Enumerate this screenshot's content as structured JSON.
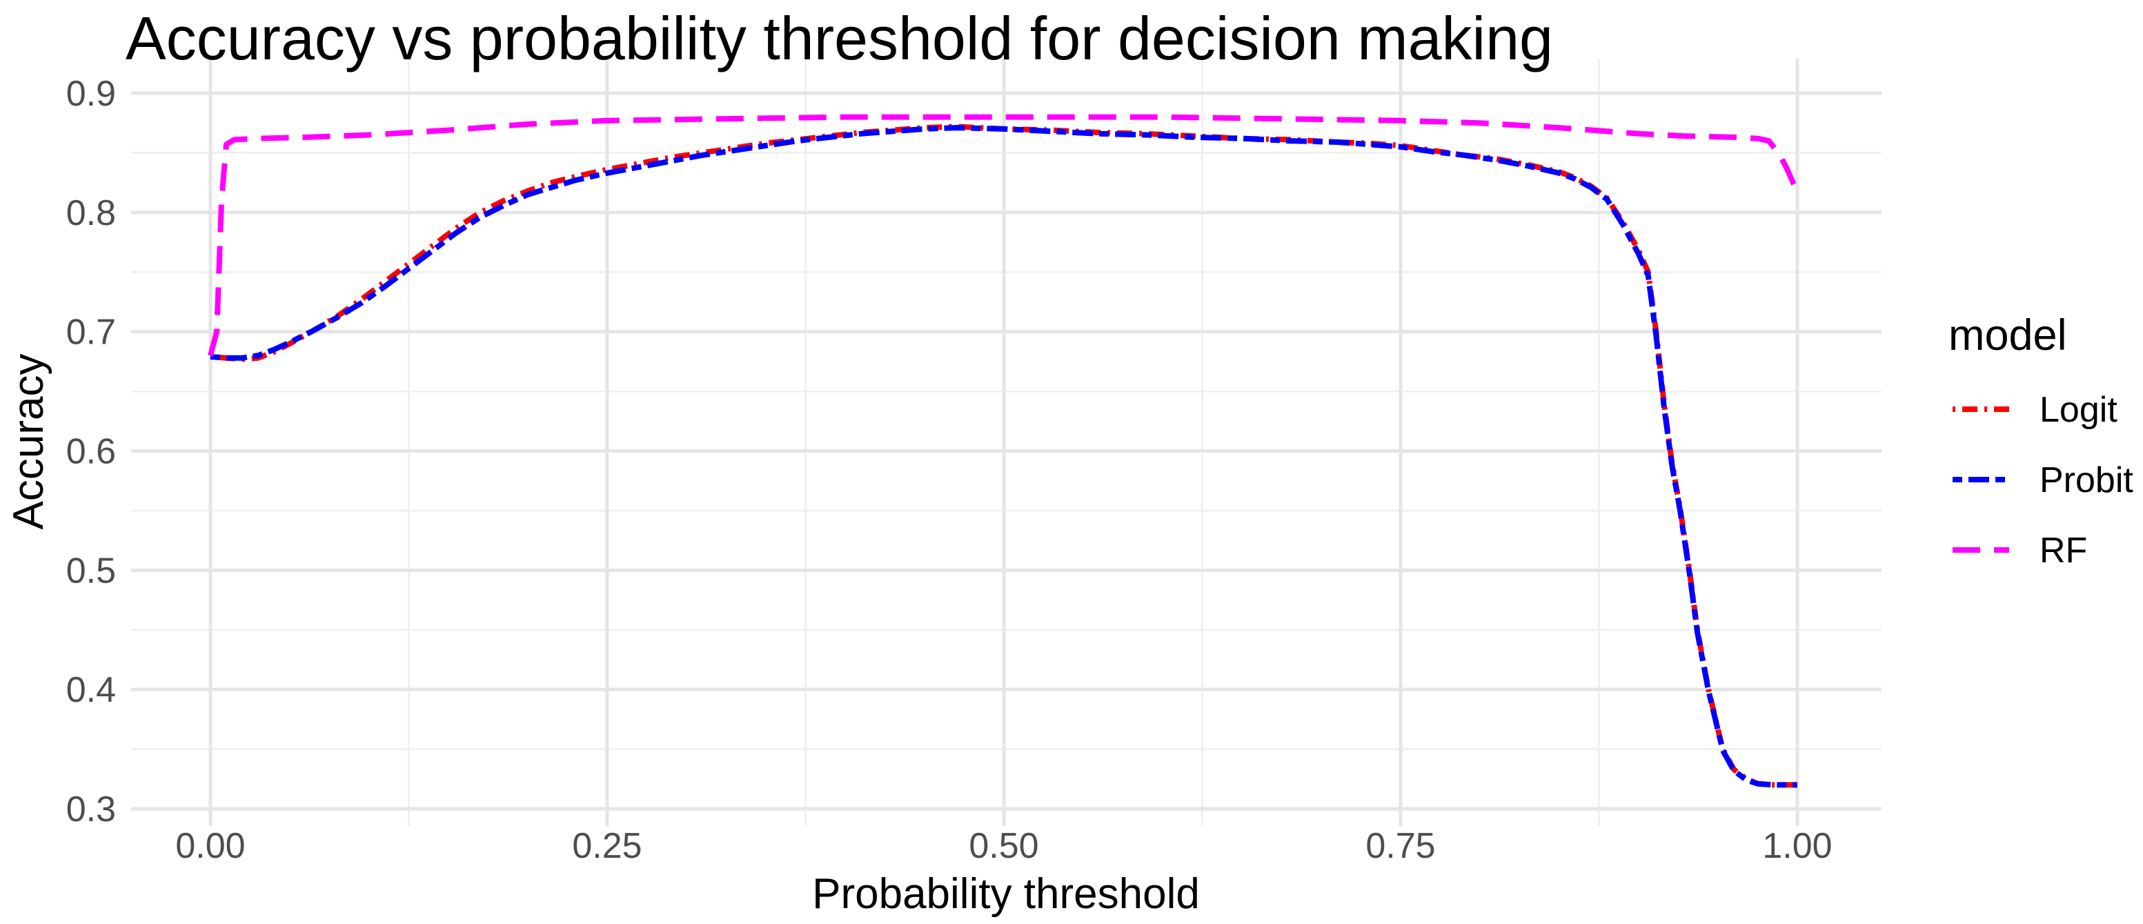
{
  "page": {
    "background": "#ffffff"
  },
  "chart_data": {
    "type": "line",
    "title": "Accuracy vs probability threshold for decision making",
    "xlabel": "Probability threshold",
    "ylabel": "Accuracy",
    "xlim": [
      0,
      1
    ],
    "ylim": [
      0.3,
      0.9
    ],
    "grid": true,
    "grid_major_color": "#e5e5e5",
    "grid_minor_color": "#f0f0f0",
    "tick_label_color": "#4d4d4d",
    "x_ticks": [
      {
        "v": 0.0,
        "label": "0.00"
      },
      {
        "v": 0.25,
        "label": "0.25"
      },
      {
        "v": 0.5,
        "label": "0.50"
      },
      {
        "v": 0.75,
        "label": "0.75"
      },
      {
        "v": 1.0,
        "label": "1.00"
      }
    ],
    "y_ticks": [
      {
        "v": 0.3,
        "label": "0.3"
      },
      {
        "v": 0.4,
        "label": "0.4"
      },
      {
        "v": 0.5,
        "label": "0.5"
      },
      {
        "v": 0.6,
        "label": "0.6"
      },
      {
        "v": 0.7,
        "label": "0.7"
      },
      {
        "v": 0.8,
        "label": "0.8"
      },
      {
        "v": 0.9,
        "label": "0.9"
      }
    ],
    "x_minor": [
      0.125,
      0.375,
      0.625,
      0.875
    ],
    "y_minor": [
      0.35,
      0.45,
      0.55,
      0.65,
      0.75,
      0.85
    ],
    "legend": {
      "title": "model",
      "position": "right"
    },
    "series": [
      {
        "name": "Logit",
        "color": "#ff0000",
        "dash": "4 10 22 10",
        "points": [
          [
            0,
            0.679
          ],
          [
            0.01,
            0.678
          ],
          [
            0.02,
            0.677
          ],
          [
            0.03,
            0.678
          ],
          [
            0.04,
            0.683
          ],
          [
            0.05,
            0.69
          ],
          [
            0.065,
            0.701
          ],
          [
            0.08,
            0.713
          ],
          [
            0.095,
            0.727
          ],
          [
            0.11,
            0.742
          ],
          [
            0.125,
            0.757
          ],
          [
            0.14,
            0.772
          ],
          [
            0.155,
            0.787
          ],
          [
            0.17,
            0.8
          ],
          [
            0.185,
            0.81
          ],
          [
            0.2,
            0.818
          ],
          [
            0.215,
            0.825
          ],
          [
            0.23,
            0.83
          ],
          [
            0.25,
            0.836
          ],
          [
            0.27,
            0.841
          ],
          [
            0.29,
            0.846
          ],
          [
            0.31,
            0.85
          ],
          [
            0.33,
            0.854
          ],
          [
            0.35,
            0.858
          ],
          [
            0.37,
            0.861
          ],
          [
            0.39,
            0.864
          ],
          [
            0.41,
            0.867
          ],
          [
            0.43,
            0.869
          ],
          [
            0.45,
            0.871
          ],
          [
            0.47,
            0.872
          ],
          [
            0.5,
            0.87
          ],
          [
            0.53,
            0.869
          ],
          [
            0.56,
            0.867
          ],
          [
            0.59,
            0.866
          ],
          [
            0.62,
            0.864
          ],
          [
            0.65,
            0.862
          ],
          [
            0.68,
            0.861
          ],
          [
            0.71,
            0.859
          ],
          [
            0.73,
            0.858
          ],
          [
            0.75,
            0.856
          ],
          [
            0.77,
            0.852
          ],
          [
            0.79,
            0.848
          ],
          [
            0.81,
            0.845
          ],
          [
            0.83,
            0.84
          ],
          [
            0.85,
            0.834
          ],
          [
            0.86,
            0.829
          ],
          [
            0.87,
            0.822
          ],
          [
            0.88,
            0.812
          ],
          [
            0.89,
            0.792
          ],
          [
            0.9,
            0.768
          ],
          [
            0.906,
            0.75
          ],
          [
            0.911,
            0.7
          ],
          [
            0.916,
            0.64
          ],
          [
            0.921,
            0.59
          ],
          [
            0.926,
            0.553
          ],
          [
            0.932,
            0.5
          ],
          [
            0.937,
            0.45
          ],
          [
            0.944,
            0.4
          ],
          [
            0.953,
            0.35
          ],
          [
            0.96,
            0.333
          ],
          [
            0.968,
            0.325
          ],
          [
            0.975,
            0.321
          ],
          [
            0.985,
            0.32
          ],
          [
            1,
            0.32
          ]
        ]
      },
      {
        "name": "Probit",
        "color": "#0000ff",
        "dash": "14 9 30 9",
        "points": [
          [
            0,
            0.679
          ],
          [
            0.01,
            0.678
          ],
          [
            0.02,
            0.678
          ],
          [
            0.03,
            0.68
          ],
          [
            0.04,
            0.685
          ],
          [
            0.05,
            0.691
          ],
          [
            0.065,
            0.701
          ],
          [
            0.08,
            0.712
          ],
          [
            0.095,
            0.724
          ],
          [
            0.11,
            0.738
          ],
          [
            0.125,
            0.753
          ],
          [
            0.14,
            0.768
          ],
          [
            0.155,
            0.783
          ],
          [
            0.17,
            0.796
          ],
          [
            0.185,
            0.806
          ],
          [
            0.2,
            0.815
          ],
          [
            0.215,
            0.821
          ],
          [
            0.23,
            0.827
          ],
          [
            0.25,
            0.833
          ],
          [
            0.27,
            0.838
          ],
          [
            0.29,
            0.843
          ],
          [
            0.31,
            0.848
          ],
          [
            0.33,
            0.852
          ],
          [
            0.35,
            0.856
          ],
          [
            0.37,
            0.86
          ],
          [
            0.39,
            0.863
          ],
          [
            0.41,
            0.866
          ],
          [
            0.43,
            0.868
          ],
          [
            0.45,
            0.87
          ],
          [
            0.47,
            0.871
          ],
          [
            0.5,
            0.87
          ],
          [
            0.53,
            0.868
          ],
          [
            0.56,
            0.866
          ],
          [
            0.59,
            0.865
          ],
          [
            0.62,
            0.863
          ],
          [
            0.65,
            0.862
          ],
          [
            0.68,
            0.86
          ],
          [
            0.71,
            0.859
          ],
          [
            0.73,
            0.857
          ],
          [
            0.75,
            0.855
          ],
          [
            0.77,
            0.851
          ],
          [
            0.79,
            0.848
          ],
          [
            0.81,
            0.844
          ],
          [
            0.83,
            0.839
          ],
          [
            0.85,
            0.833
          ],
          [
            0.86,
            0.828
          ],
          [
            0.87,
            0.821
          ],
          [
            0.88,
            0.811
          ],
          [
            0.89,
            0.79
          ],
          [
            0.9,
            0.765
          ],
          [
            0.906,
            0.747
          ],
          [
            0.911,
            0.697
          ],
          [
            0.916,
            0.637
          ],
          [
            0.921,
            0.588
          ],
          [
            0.926,
            0.551
          ],
          [
            0.932,
            0.498
          ],
          [
            0.937,
            0.448
          ],
          [
            0.944,
            0.399
          ],
          [
            0.953,
            0.349
          ],
          [
            0.96,
            0.332
          ],
          [
            0.968,
            0.324
          ],
          [
            0.975,
            0.321
          ],
          [
            0.985,
            0.32
          ],
          [
            1,
            0.32
          ]
        ]
      },
      {
        "name": "RF",
        "color": "#ff00ff",
        "dash": "40 20",
        "points": [
          [
            0,
            0.68
          ],
          [
            0.004,
            0.7
          ],
          [
            0.007,
            0.81
          ],
          [
            0.01,
            0.857
          ],
          [
            0.015,
            0.861
          ],
          [
            0.03,
            0.862
          ],
          [
            0.06,
            0.863
          ],
          [
            0.1,
            0.865
          ],
          [
            0.15,
            0.869
          ],
          [
            0.2,
            0.874
          ],
          [
            0.25,
            0.877
          ],
          [
            0.3,
            0.878
          ],
          [
            0.35,
            0.879
          ],
          [
            0.4,
            0.88
          ],
          [
            0.45,
            0.88
          ],
          [
            0.5,
            0.88
          ],
          [
            0.55,
            0.88
          ],
          [
            0.6,
            0.88
          ],
          [
            0.65,
            0.879
          ],
          [
            0.7,
            0.878
          ],
          [
            0.75,
            0.877
          ],
          [
            0.8,
            0.875
          ],
          [
            0.85,
            0.871
          ],
          [
            0.88,
            0.868
          ],
          [
            0.9,
            0.866
          ],
          [
            0.93,
            0.864
          ],
          [
            0.96,
            0.863
          ],
          [
            0.975,
            0.862
          ],
          [
            0.982,
            0.86
          ],
          [
            0.988,
            0.85
          ],
          [
            0.993,
            0.838
          ],
          [
            1,
            0.817
          ]
        ]
      }
    ]
  }
}
